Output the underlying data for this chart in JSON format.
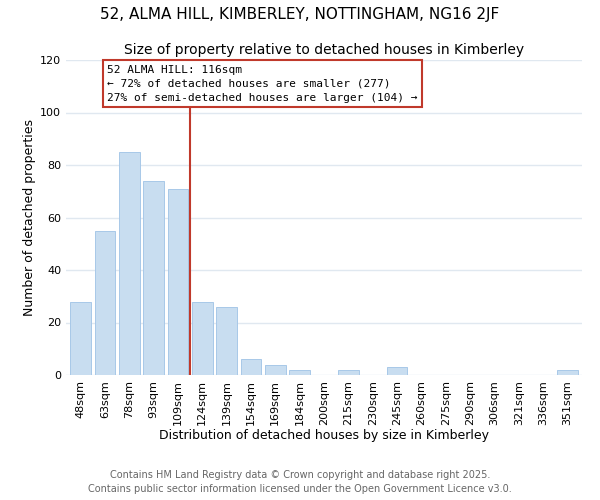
{
  "title": "52, ALMA HILL, KIMBERLEY, NOTTINGHAM, NG16 2JF",
  "subtitle": "Size of property relative to detached houses in Kimberley",
  "xlabel": "Distribution of detached houses by size in Kimberley",
  "ylabel": "Number of detached properties",
  "bar_color": "#c8ddf0",
  "bar_edge_color": "#a8c8e8",
  "categories": [
    "48sqm",
    "63sqm",
    "78sqm",
    "93sqm",
    "109sqm",
    "124sqm",
    "139sqm",
    "154sqm",
    "169sqm",
    "184sqm",
    "200sqm",
    "215sqm",
    "230sqm",
    "245sqm",
    "260sqm",
    "275sqm",
    "290sqm",
    "306sqm",
    "321sqm",
    "336sqm",
    "351sqm"
  ],
  "values": [
    28,
    55,
    85,
    74,
    71,
    28,
    26,
    6,
    4,
    2,
    0,
    2,
    0,
    3,
    0,
    0,
    0,
    0,
    0,
    0,
    2
  ],
  "ylim": [
    0,
    120
  ],
  "yticks": [
    0,
    20,
    40,
    60,
    80,
    100,
    120
  ],
  "vline_color": "#c0392b",
  "annotation_title": "52 ALMA HILL: 116sqm",
  "annotation_line1": "← 72% of detached houses are smaller (277)",
  "annotation_line2": "27% of semi-detached houses are larger (104) →",
  "annotation_box_color": "#ffffff",
  "annotation_box_edge": "#c0392b",
  "footer_line1": "Contains HM Land Registry data © Crown copyright and database right 2025.",
  "footer_line2": "Contains public sector information licensed under the Open Government Licence v3.0.",
  "background_color": "#ffffff",
  "plot_bg_color": "#ffffff",
  "grid_color": "#e0e8f0",
  "title_fontsize": 11,
  "subtitle_fontsize": 10,
  "axis_label_fontsize": 9,
  "tick_fontsize": 8,
  "annotation_fontsize": 8,
  "footer_fontsize": 7
}
